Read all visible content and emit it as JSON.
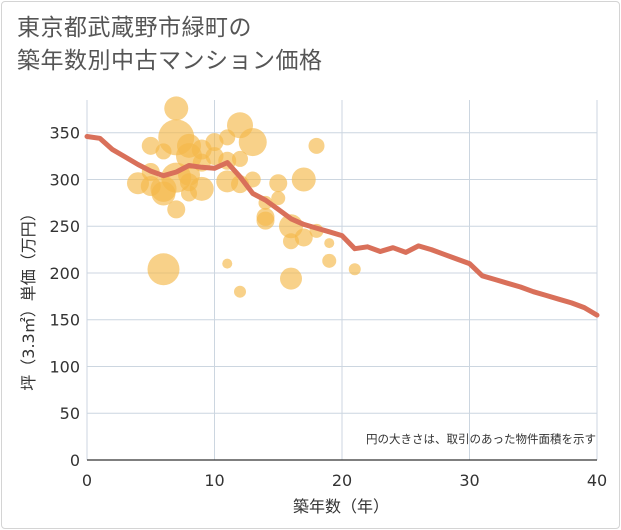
{
  "title_line1": "東京都武蔵野市緑町の",
  "title_line2": "築年数別中古マンション価格",
  "chart_data": {
    "type": "scatter",
    "xlabel": "築年数（年）",
    "ylabel": "坪（3.3㎡）単価（万円）",
    "xlim": [
      0,
      40
    ],
    "ylim": [
      0,
      385
    ],
    "xticks": [
      0,
      10,
      20,
      30,
      40
    ],
    "yticks": [
      0,
      50,
      100,
      150,
      200,
      250,
      300,
      350
    ],
    "grid": true,
    "note": "円の大きさは、取引のあった物件面積を示す",
    "colors": {
      "bubble": "#f5b94a",
      "line": "#d9705a",
      "grid": "#ccd6e0"
    },
    "bubbles": [
      {
        "x": 4,
        "y": 296,
        "s": 11
      },
      {
        "x": 5,
        "y": 336,
        "s": 9
      },
      {
        "x": 5,
        "y": 308,
        "s": 9
      },
      {
        "x": 5,
        "y": 293,
        "s": 10
      },
      {
        "x": 6,
        "y": 330,
        "s": 8
      },
      {
        "x": 6,
        "y": 290,
        "s": 13
      },
      {
        "x": 6,
        "y": 285,
        "s": 12
      },
      {
        "x": 6,
        "y": 204,
        "s": 16
      },
      {
        "x": 7,
        "y": 376,
        "s": 12
      },
      {
        "x": 7,
        "y": 345,
        "s": 18
      },
      {
        "x": 7,
        "y": 302,
        "s": 15
      },
      {
        "x": 7,
        "y": 268,
        "s": 9
      },
      {
        "x": 8,
        "y": 336,
        "s": 12
      },
      {
        "x": 8,
        "y": 325,
        "s": 13
      },
      {
        "x": 8,
        "y": 305,
        "s": 11
      },
      {
        "x": 8,
        "y": 297,
        "s": 9
      },
      {
        "x": 8,
        "y": 285,
        "s": 8
      },
      {
        "x": 9,
        "y": 332,
        "s": 10
      },
      {
        "x": 9,
        "y": 318,
        "s": 9
      },
      {
        "x": 9,
        "y": 290,
        "s": 12
      },
      {
        "x": 10,
        "y": 340,
        "s": 9
      },
      {
        "x": 10,
        "y": 325,
        "s": 9
      },
      {
        "x": 11,
        "y": 345,
        "s": 8
      },
      {
        "x": 11,
        "y": 320,
        "s": 9
      },
      {
        "x": 11,
        "y": 298,
        "s": 11
      },
      {
        "x": 11,
        "y": 210,
        "s": 5
      },
      {
        "x": 12,
        "y": 358,
        "s": 13
      },
      {
        "x": 12,
        "y": 322,
        "s": 8
      },
      {
        "x": 12,
        "y": 295,
        "s": 9
      },
      {
        "x": 12,
        "y": 180,
        "s": 6
      },
      {
        "x": 13,
        "y": 340,
        "s": 14
      },
      {
        "x": 13,
        "y": 300,
        "s": 8
      },
      {
        "x": 14,
        "y": 275,
        "s": 7
      },
      {
        "x": 14,
        "y": 260,
        "s": 9
      },
      {
        "x": 14,
        "y": 256,
        "s": 9
      },
      {
        "x": 15,
        "y": 296,
        "s": 9
      },
      {
        "x": 15,
        "y": 280,
        "s": 7
      },
      {
        "x": 16,
        "y": 250,
        "s": 12
      },
      {
        "x": 16,
        "y": 234,
        "s": 8
      },
      {
        "x": 16,
        "y": 194,
        "s": 11
      },
      {
        "x": 17,
        "y": 300,
        "s": 12
      },
      {
        "x": 17,
        "y": 238,
        "s": 9
      },
      {
        "x": 18,
        "y": 336,
        "s": 8
      },
      {
        "x": 18,
        "y": 245,
        "s": 7
      },
      {
        "x": 19,
        "y": 232,
        "s": 5
      },
      {
        "x": 19,
        "y": 213,
        "s": 7
      },
      {
        "x": 21,
        "y": 204,
        "s": 6
      }
    ],
    "series": [
      {
        "x": [
          0,
          1,
          2,
          3,
          4,
          5,
          6,
          7,
          8,
          9,
          10,
          11,
          12,
          13,
          14,
          15,
          16,
          17,
          18,
          19,
          20,
          21,
          22,
          23,
          24,
          25,
          26,
          27,
          28,
          29,
          30,
          31,
          32,
          33,
          34,
          35,
          36,
          37,
          38,
          39,
          40
        ],
        "y": [
          346,
          344,
          332,
          324,
          316,
          309,
          304,
          308,
          315,
          313,
          312,
          318,
          303,
          285,
          278,
          268,
          258,
          252,
          248,
          244,
          240,
          226,
          228,
          223,
          227,
          222,
          229,
          225,
          220,
          215,
          210,
          197,
          193,
          189,
          185,
          180,
          176,
          172,
          168,
          163,
          155
        ]
      }
    ]
  }
}
